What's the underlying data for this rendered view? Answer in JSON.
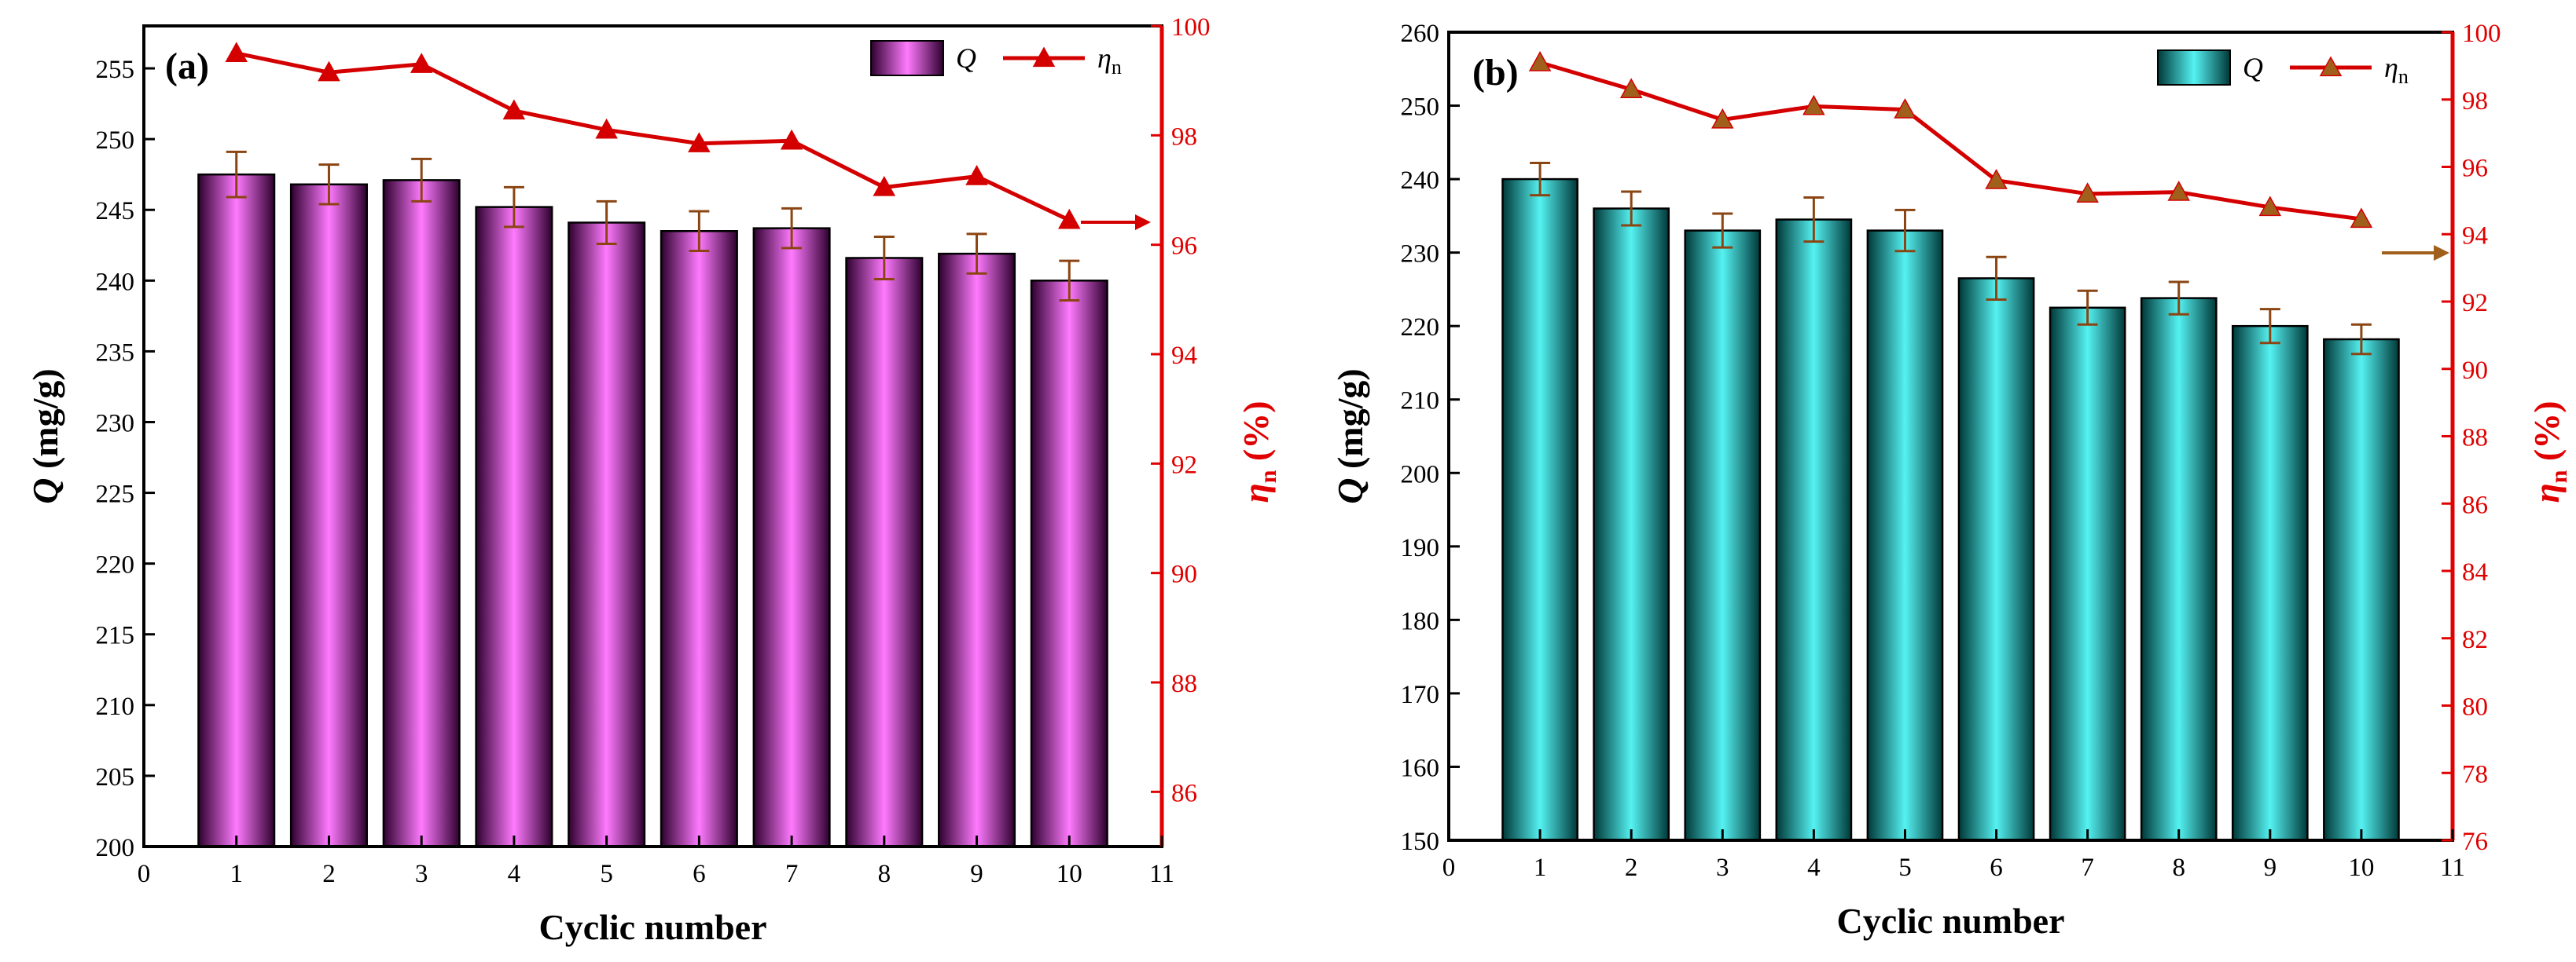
{
  "chart_data": [
    {
      "type": "bar",
      "panel_label": "(a)",
      "x": [
        1,
        2,
        3,
        4,
        5,
        6,
        7,
        8,
        9,
        10
      ],
      "x_ticks": [
        "0",
        "1",
        "2",
        "3",
        "4",
        "5",
        "6",
        "7",
        "8",
        "9",
        "10",
        "11"
      ],
      "xlim": [
        0,
        11
      ],
      "xlabel": "Cyclic number",
      "ylabel_left_symbol": "Q",
      "ylabel_left_unit": " (mg/g)",
      "ylim_left": [
        200,
        258
      ],
      "yticks_left": [
        "200",
        "205",
        "210",
        "215",
        "220",
        "225",
        "230",
        "235",
        "240",
        "245",
        "250",
        "255"
      ],
      "ylabel_right_symbol": "η",
      "ylabel_right_sub": "n",
      "ylabel_right_unit": " (%)",
      "ylim_right": [
        85,
        100
      ],
      "yticks_right": [
        "86",
        "88",
        "90",
        "92",
        "94",
        "96",
        "98",
        "100"
      ],
      "series": [
        {
          "name": "Q",
          "kind": "bar",
          "axis": "left",
          "values": [
            247.5,
            246.8,
            247.1,
            245.2,
            244.1,
            243.5,
            243.7,
            241.6,
            241.9,
            240.0
          ],
          "errors": [
            1.6,
            1.4,
            1.5,
            1.4,
            1.5,
            1.4,
            1.4,
            1.5,
            1.4,
            1.4
          ]
        },
        {
          "name": "ηn",
          "kind": "line",
          "axis": "right",
          "values": [
            99.5,
            99.15,
            99.3,
            98.45,
            98.1,
            97.85,
            97.9,
            97.05,
            97.25,
            96.45
          ]
        }
      ],
      "legend": {
        "bar": "Q",
        "line_symbol": "η",
        "line_sub": "n",
        "placement": "top-right"
      },
      "colors": {
        "bar_mid": "#ff7aff",
        "bar_edge": "#2e002e",
        "line": "#d40000",
        "marker": "#d40000"
      }
    },
    {
      "type": "bar",
      "panel_label": "(b)",
      "x": [
        1,
        2,
        3,
        4,
        5,
        6,
        7,
        8,
        9,
        10
      ],
      "x_ticks": [
        "0",
        "1",
        "2",
        "3",
        "4",
        "5",
        "6",
        "7",
        "8",
        "9",
        "10",
        "11"
      ],
      "xlim": [
        0,
        11
      ],
      "xlabel": "Cyclic number",
      "ylabel_left_symbol": "Q",
      "ylabel_left_unit": " (mg/g)",
      "ylim_left": [
        150,
        260
      ],
      "yticks_left": [
        "150",
        "160",
        "170",
        "180",
        "190",
        "200",
        "210",
        "220",
        "230",
        "240",
        "250",
        "260"
      ],
      "ylabel_right_symbol": "η",
      "ylabel_right_sub": "n",
      "ylabel_right_unit": " (%)",
      "ylim_right": [
        76,
        100
      ],
      "yticks_right": [
        "76",
        "78",
        "80",
        "82",
        "84",
        "86",
        "88",
        "90",
        "92",
        "94",
        "96",
        "98",
        "100"
      ],
      "series": [
        {
          "name": "Q",
          "kind": "bar",
          "axis": "left",
          "values": [
            240.0,
            236.0,
            233.0,
            234.5,
            233.0,
            226.5,
            222.5,
            223.8,
            220.0,
            218.2
          ],
          "errors": [
            2.2,
            2.3,
            2.3,
            3.0,
            2.8,
            2.9,
            2.3,
            2.2,
            2.3,
            2.0
          ]
        },
        {
          "name": "ηn",
          "kind": "line",
          "axis": "right",
          "values": [
            99.1,
            98.3,
            97.4,
            97.8,
            97.7,
            95.6,
            95.2,
            95.25,
            94.8,
            94.45
          ]
        }
      ],
      "legend": {
        "bar": "Q",
        "line_symbol": "η",
        "line_sub": "n",
        "placement": "top-right"
      },
      "colors": {
        "bar_mid": "#55f2f2",
        "bar_edge": "#003838",
        "line": "#d40000",
        "marker": "#a0601c"
      }
    }
  ]
}
